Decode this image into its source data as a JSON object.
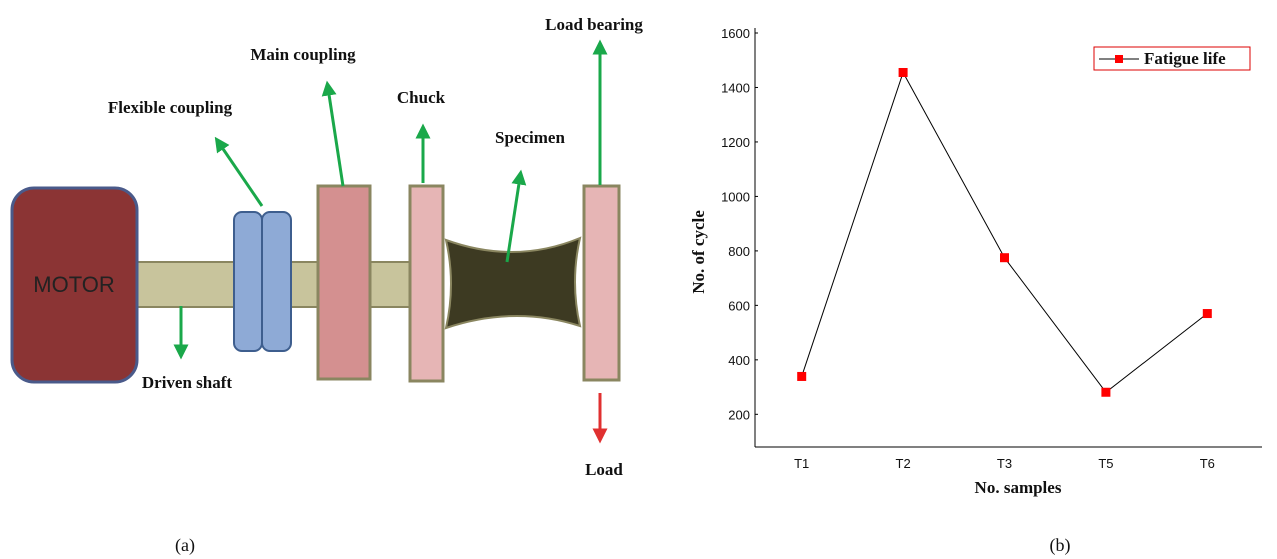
{
  "diagram": {
    "motor": "MOTOR",
    "flexible_coupling": "Flexible coupling",
    "main_coupling": "Main coupling",
    "chuck": "Chuck",
    "specimen": "Specimen",
    "load_bearing": "Load bearing",
    "driven_shaft": "Driven shaft",
    "load": "Load",
    "caption": "(a)"
  },
  "chart_data": {
    "type": "line",
    "xlabel": "No. samples",
    "ylabel": "No. of cycle",
    "categories": [
      "T1",
      "T2",
      "T3",
      "T5",
      "T6"
    ],
    "series": [
      {
        "name": "Fatigue life",
        "color": "#ff0000",
        "line_color": "#000000",
        "values": [
          339,
          1455,
          775,
          281,
          570
        ]
      }
    ],
    "ylim": [
      80,
      1600
    ],
    "yticks": [
      200,
      400,
      600,
      800,
      1000,
      1200,
      1400,
      1600
    ],
    "grid": false,
    "legend": "upper right",
    "caption": "(b)"
  }
}
